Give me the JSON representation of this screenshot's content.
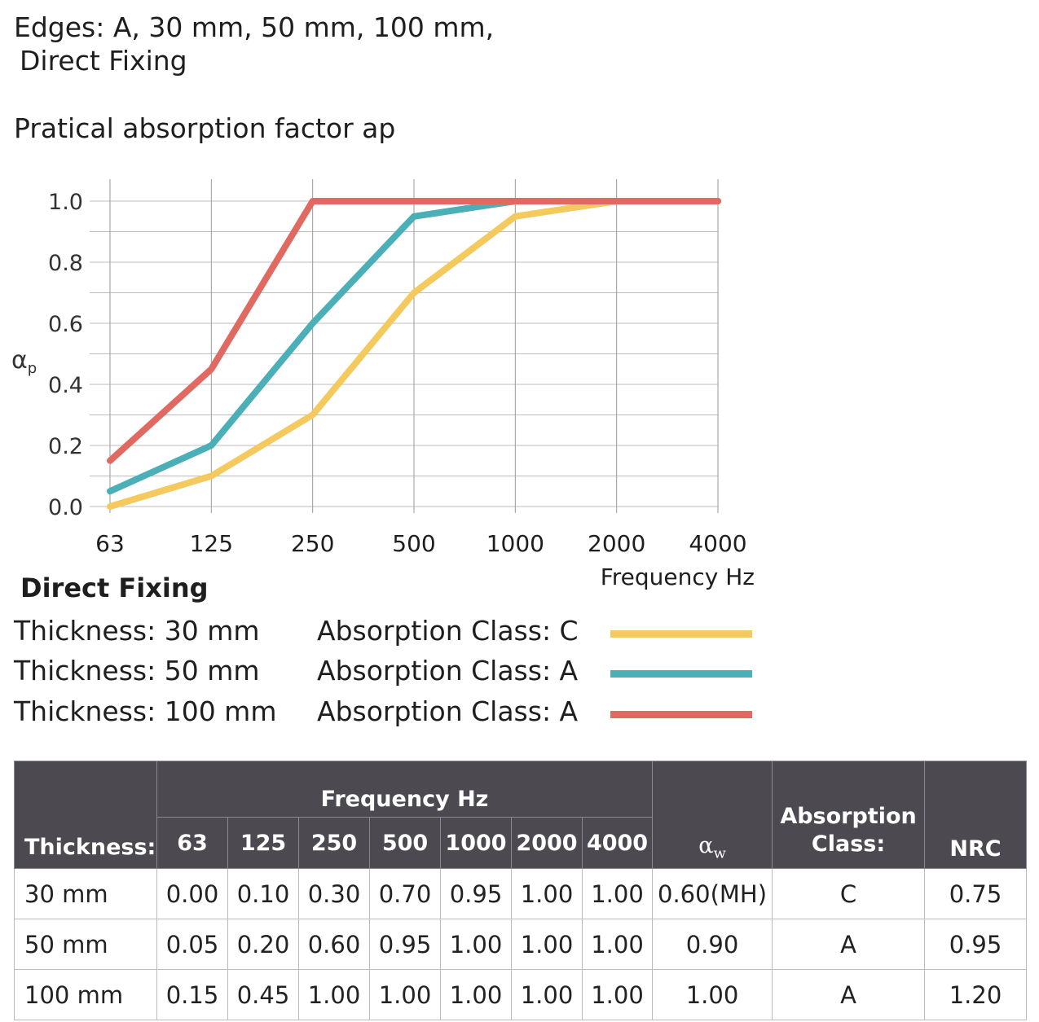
{
  "header": {
    "line1": "Edges: A, 30 mm, 50 mm, 100 mm,",
    "line2": "Direct Fixing",
    "chart_title": "Pratical absorption factor ap"
  },
  "chart_data": {
    "type": "line",
    "title": "Pratical absorption factor ap",
    "ylabel_main": "α",
    "ylabel_sub": "p",
    "xlabel": "Frequency Hz",
    "categories": [
      "63",
      "125",
      "250",
      "500",
      "1000",
      "2000",
      "4000"
    ],
    "yticks": [
      "0.0",
      "0.2",
      "0.4",
      "0.6",
      "0.8",
      "1.0"
    ],
    "ylim": [
      0,
      1.0
    ],
    "grid": true,
    "series": [
      {
        "name": "Thickness: 30 mm",
        "color": "#f4c95d",
        "values": [
          0.0,
          0.1,
          0.3,
          0.7,
          0.95,
          1.0,
          1.0
        ]
      },
      {
        "name": "Thickness: 50 mm",
        "color": "#4aafb6",
        "values": [
          0.05,
          0.2,
          0.6,
          0.95,
          1.0,
          1.0,
          1.0
        ]
      },
      {
        "name": "Thickness: 100 mm",
        "color": "#e06a62",
        "values": [
          0.15,
          0.45,
          1.0,
          1.0,
          1.0,
          1.0,
          1.0
        ]
      }
    ]
  },
  "legend": {
    "title": "Direct Fixing",
    "rows": [
      {
        "thickness": "Thickness: 30 mm",
        "class": "Absorption Class: C",
        "color": "#f4c95d"
      },
      {
        "thickness": "Thickness: 50 mm",
        "class": "Absorption Class: A",
        "color": "#4aafb6"
      },
      {
        "thickness": "Thickness: 100 mm",
        "class": "Absorption Class: A",
        "color": "#e06a62"
      }
    ]
  },
  "table": {
    "headers": {
      "thickness": "Thickness:",
      "freq_group": "Frequency Hz",
      "freqs": [
        "63",
        "125",
        "250",
        "500",
        "1000",
        "2000",
        "4000"
      ],
      "aw_main": "α",
      "aw_sub": "w",
      "class_line1": "Absorption",
      "class_line2": "Class:",
      "nrc": "NRC"
    },
    "rows": [
      {
        "thickness": "30 mm",
        "values": [
          "0.00",
          "0.10",
          "0.30",
          "0.70",
          "0.95",
          "1.00",
          "1.00"
        ],
        "aw": "0.60(MH)",
        "class": "C",
        "nrc": "0.75"
      },
      {
        "thickness": "50 mm",
        "values": [
          "0.05",
          "0.20",
          "0.60",
          "0.95",
          "1.00",
          "1.00",
          "1.00"
        ],
        "aw": "0.90",
        "class": "A",
        "nrc": "0.95"
      },
      {
        "thickness": "100 mm",
        "values": [
          "0.15",
          "0.45",
          "1.00",
          "1.00",
          "1.00",
          "1.00",
          "1.00"
        ],
        "aw": "1.00",
        "class": "A",
        "nrc": "1.20"
      }
    ]
  }
}
